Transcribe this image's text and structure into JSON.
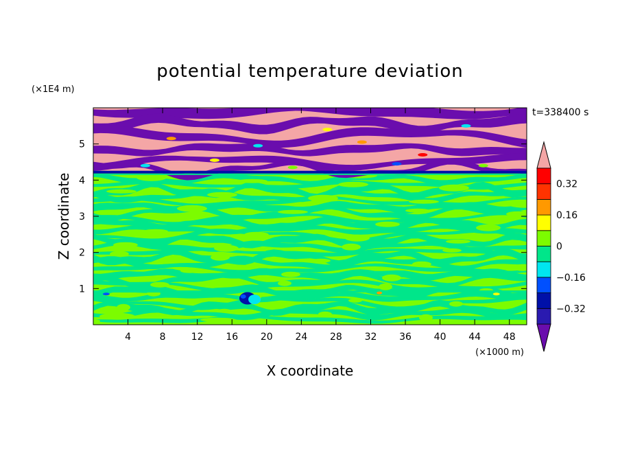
{
  "chart_data": {
    "type": "heatmap",
    "title": "potential temperature deviation",
    "xlabel": "X coordinate",
    "ylabel": "Z coordinate",
    "x_unit_label": "(×1000 m)",
    "y_unit_label": "(×1E4 m)",
    "time_label": "t=338400 s",
    "xlim": [
      0,
      50
    ],
    "ylim": [
      0,
      6
    ],
    "x_ticks": [
      4,
      8,
      12,
      16,
      20,
      24,
      28,
      32,
      36,
      40,
      44,
      48
    ],
    "y_ticks": [
      1,
      2,
      3,
      4,
      5
    ],
    "colorbar": {
      "levels": [
        -0.4,
        -0.32,
        -0.24,
        -0.16,
        -0.08,
        0,
        0.08,
        0.16,
        0.24,
        0.32,
        0.4
      ],
      "tick_labels": [
        {
          "value": 0.32,
          "label": "0.32"
        },
        {
          "value": 0.16,
          "label": "0.16"
        },
        {
          "value": 0,
          "label": "0"
        },
        {
          "value": -0.16,
          "label": "−0.16"
        },
        {
          "value": -0.32,
          "label": "−0.32"
        }
      ],
      "colors": [
        "#6a0dad",
        "#2a1ab0",
        "#0010a8",
        "#0050ff",
        "#00e6f0",
        "#00e68a",
        "#7cfc00",
        "#ffff00",
        "#ff9900",
        "#ff3300",
        "#ff0000",
        "#f4a6a6"
      ],
      "extend": "both"
    },
    "regions": [
      {
        "z_range": [
          4.2,
          6.0
        ],
        "pattern": "alternating bands of purple (below -0.4) and pink (above 0.4)"
      },
      {
        "z_range": [
          0.0,
          4.2
        ],
        "pattern": "green (0 to 0.08) and sea green (-0.08 to 0) mottled bands"
      },
      {
        "z_range": [
          0.85,
          0.95
        ],
        "pattern": "thin line with blue and cyan patches near x 16-20"
      }
    ]
  }
}
